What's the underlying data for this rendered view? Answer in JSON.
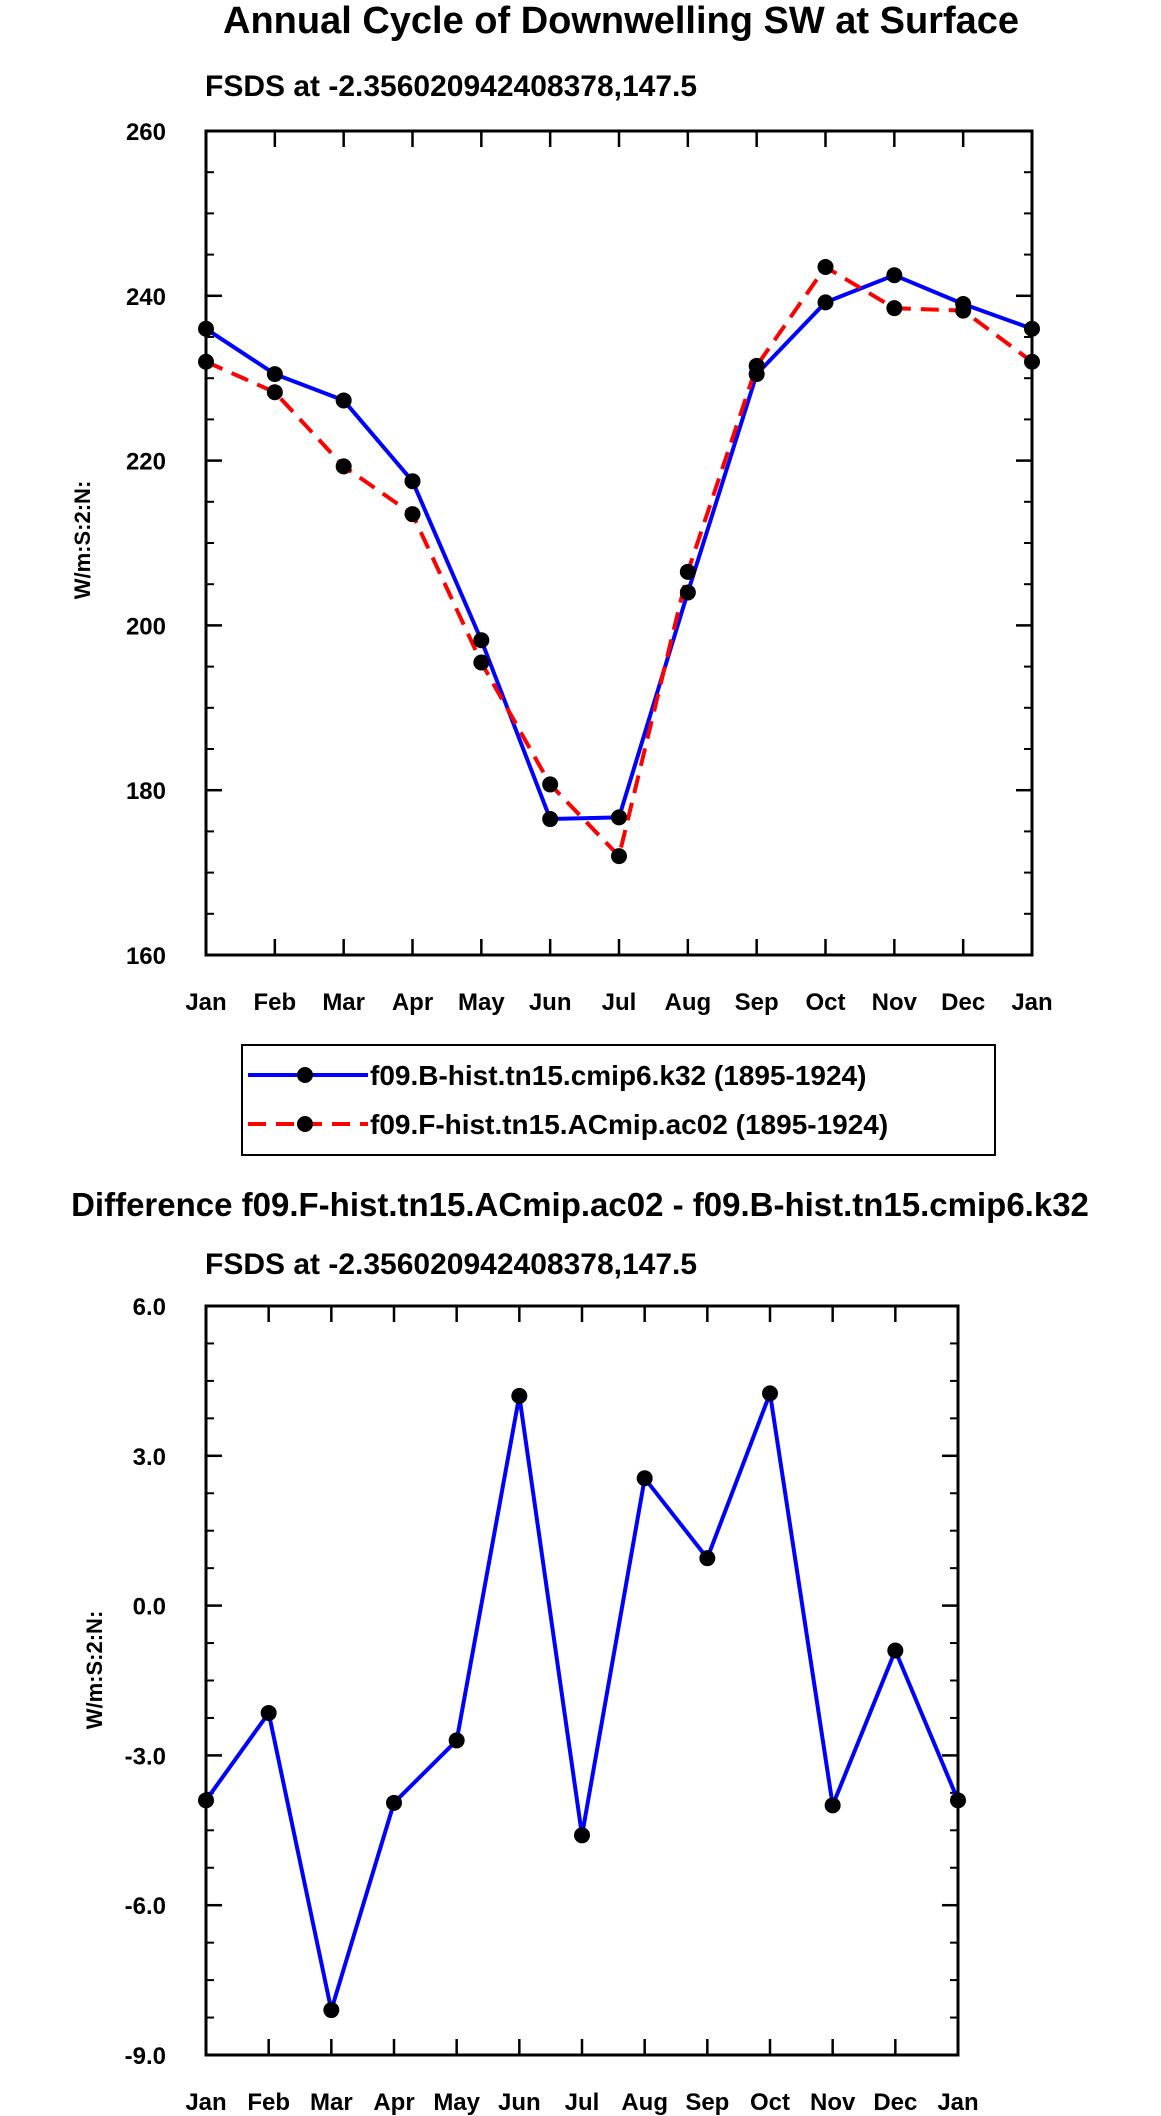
{
  "chart_data": [
    {
      "type": "line",
      "title": "Annual Cycle of Downwelling SW at Surface",
      "subtitle": "FSDS at -2.356020942408378,147.5",
      "xlabel": "",
      "ylabel": "W/m:S:2:N:",
      "categories": [
        "Jan",
        "Feb",
        "Mar",
        "Apr",
        "May",
        "Jun",
        "Jul",
        "Aug",
        "Sep",
        "Oct",
        "Nov",
        "Dec",
        "Jan"
      ],
      "ylim": [
        160,
        260
      ],
      "yticks": [
        160,
        180,
        200,
        220,
        240,
        260
      ],
      "ytick_labels": [
        "160",
        "180",
        "200",
        "220",
        "240",
        "260"
      ],
      "legend_position": "bottom",
      "series": [
        {
          "name": "f09.B-hist.tn15.cmip6.k32 (1895-1924)",
          "color": "#0000ff",
          "dash": "solid",
          "values": [
            236.0,
            230.5,
            227.3,
            217.5,
            198.2,
            176.5,
            176.7,
            204.0,
            230.5,
            239.2,
            242.5,
            239.0,
            236.0
          ]
        },
        {
          "name": "f09.F-hist.tn15.ACmip.ac02 (1895-1924)",
          "color": "#ff0000",
          "dash": "dashed",
          "values": [
            232.0,
            228.3,
            219.3,
            213.5,
            195.5,
            180.7,
            172.0,
            206.5,
            231.5,
            243.5,
            238.5,
            238.2,
            232.0
          ]
        }
      ]
    },
    {
      "type": "line",
      "title": "Difference f09.F-hist.tn15.ACmip.ac02 - f09.B-hist.tn15.cmip6.k32",
      "subtitle": "FSDS at -2.356020942408378,147.5",
      "xlabel": "",
      "ylabel": "W/m:S:2:N:",
      "categories": [
        "Jan",
        "Feb",
        "Mar",
        "Apr",
        "May",
        "Jun",
        "Jul",
        "Aug",
        "Sep",
        "Oct",
        "Nov",
        "Dec",
        "Jan"
      ],
      "ylim": [
        -9.0,
        6.0
      ],
      "yticks": [
        -9,
        -6,
        -3,
        0,
        3,
        6
      ],
      "ytick_labels": [
        "-9.0",
        "-6.0",
        "-3.0",
        "0.0",
        "3.0",
        "6.0"
      ],
      "series": [
        {
          "color": "#0000ff",
          "dash": "solid",
          "values": [
            -3.9,
            -2.15,
            -8.1,
            -3.95,
            -2.7,
            4.2,
            -4.6,
            2.55,
            0.95,
            4.25,
            -4.0,
            -0.9,
            -3.9
          ]
        }
      ]
    }
  ]
}
